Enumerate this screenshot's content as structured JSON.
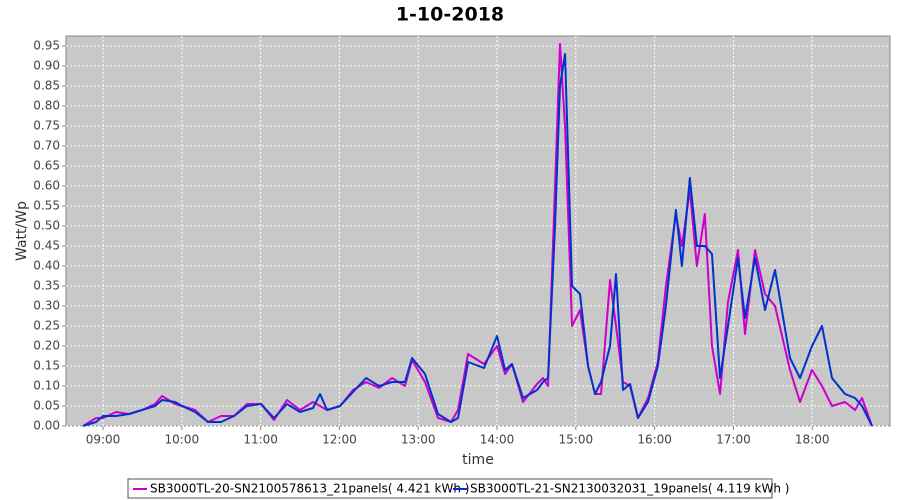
{
  "chart_data": {
    "type": "line",
    "title": "1-10-2018",
    "x_label": "time",
    "y_label": "Watt/Wp",
    "x": [
      8.746,
      8.911,
      9.0,
      9.165,
      9.33,
      9.495,
      9.66,
      9.749,
      9.914,
      10.003,
      10.168,
      10.332,
      10.497,
      10.662,
      10.827,
      11.005,
      11.17,
      11.335,
      11.5,
      11.665,
      11.754,
      11.843,
      12.008,
      12.173,
      12.338,
      12.503,
      12.668,
      12.832,
      12.921,
      13.086,
      13.251,
      13.416,
      13.505,
      13.632,
      13.835,
      14.0,
      14.102,
      14.19,
      14.33,
      14.508,
      14.584,
      14.647,
      14.736,
      14.799,
      14.863,
      14.952,
      15.053,
      15.155,
      15.244,
      15.32,
      15.434,
      15.51,
      15.599,
      15.688,
      15.789,
      15.916,
      16.041,
      16.143,
      16.27,
      16.346,
      16.447,
      16.536,
      16.637,
      16.728,
      16.83,
      16.931,
      17.058,
      17.147,
      17.274,
      17.401,
      17.528,
      17.718,
      17.845,
      17.997,
      18.124,
      18.251,
      18.416,
      18.543,
      18.632,
      18.759
    ],
    "series": [
      {
        "name": "SB3000TL-20-SN2100578613_21panels( 4.421 kWh )",
        "color": "#cc00cc",
        "values": [
          0.0,
          0.02,
          0.02,
          0.035,
          0.03,
          0.04,
          0.055,
          0.075,
          0.055,
          0.05,
          0.04,
          0.01,
          0.025,
          0.025,
          0.055,
          0.055,
          0.015,
          0.065,
          0.04,
          0.06,
          0.05,
          0.04,
          0.05,
          0.09,
          0.11,
          0.095,
          0.12,
          0.1,
          0.165,
          0.11,
          0.02,
          0.01,
          0.04,
          0.18,
          0.155,
          0.2,
          0.13,
          0.155,
          0.06,
          0.105,
          0.12,
          0.1,
          0.6,
          0.955,
          0.75,
          0.25,
          0.29,
          0.15,
          0.08,
          0.08,
          0.365,
          0.25,
          0.11,
          0.1,
          0.02,
          0.07,
          0.16,
          0.35,
          0.53,
          0.45,
          0.59,
          0.4,
          0.53,
          0.2,
          0.08,
          0.31,
          0.44,
          0.23,
          0.44,
          0.33,
          0.3,
          0.14,
          0.06,
          0.14,
          0.1,
          0.05,
          0.06,
          0.04,
          0.07,
          0.0
        ]
      },
      {
        "name": "SB3000TL-21-SN2130032031_19panels( 4.119 kWh )",
        "color": "#0033cc",
        "values": [
          0.0,
          0.01,
          0.025,
          0.025,
          0.03,
          0.04,
          0.05,
          0.065,
          0.06,
          0.05,
          0.035,
          0.01,
          0.01,
          0.025,
          0.05,
          0.055,
          0.02,
          0.055,
          0.035,
          0.045,
          0.08,
          0.04,
          0.05,
          0.085,
          0.12,
          0.1,
          0.11,
          0.11,
          0.17,
          0.13,
          0.03,
          0.01,
          0.02,
          0.16,
          0.145,
          0.225,
          0.14,
          0.155,
          0.07,
          0.09,
          0.11,
          0.12,
          0.5,
          0.85,
          0.93,
          0.35,
          0.33,
          0.15,
          0.08,
          0.11,
          0.2,
          0.38,
          0.09,
          0.105,
          0.02,
          0.06,
          0.15,
          0.3,
          0.54,
          0.4,
          0.62,
          0.45,
          0.45,
          0.43,
          0.12,
          0.25,
          0.42,
          0.27,
          0.42,
          0.29,
          0.39,
          0.17,
          0.12,
          0.2,
          0.25,
          0.12,
          0.08,
          0.07,
          0.05,
          0.0
        ]
      }
    ],
    "xlim": [
      8.53,
      18.987
    ],
    "xticks": [
      {
        "value": 9,
        "label": "09:00"
      },
      {
        "value": 10,
        "label": "10:00"
      },
      {
        "value": 11,
        "label": "11:00"
      },
      {
        "value": 12,
        "label": "12:00"
      },
      {
        "value": 13,
        "label": "13:00"
      },
      {
        "value": 14,
        "label": "14:00"
      },
      {
        "value": 15,
        "label": "15:00"
      },
      {
        "value": 16,
        "label": "16:00"
      },
      {
        "value": 17,
        "label": "17:00"
      },
      {
        "value": 18,
        "label": "18:00"
      }
    ],
    "ylim": [
      0,
      0.975
    ],
    "yticks": [
      {
        "value": 0,
        "label": "0.00"
      },
      {
        "value": 0.05,
        "label": "0.05"
      },
      {
        "value": 0.1,
        "label": "0.10"
      },
      {
        "value": 0.15,
        "label": "0.15"
      },
      {
        "value": 0.2,
        "label": "0.20"
      },
      {
        "value": 0.25,
        "label": "0.25"
      },
      {
        "value": 0.3,
        "label": "0.30"
      },
      {
        "value": 0.35,
        "label": "0.35"
      },
      {
        "value": 0.4,
        "label": "0.40"
      },
      {
        "value": 0.45,
        "label": "0.45"
      },
      {
        "value": 0.5,
        "label": "0.50"
      },
      {
        "value": 0.55,
        "label": "0.55"
      },
      {
        "value": 0.6,
        "label": "0.60"
      },
      {
        "value": 0.65,
        "label": "0.65"
      },
      {
        "value": 0.7,
        "label": "0.70"
      },
      {
        "value": 0.75,
        "label": "0.75"
      },
      {
        "value": 0.8,
        "label": "0.80"
      },
      {
        "value": 0.85,
        "label": "0.85"
      },
      {
        "value": 0.9,
        "label": "0.90"
      },
      {
        "value": 0.95,
        "label": "0.95"
      }
    ],
    "grid": true,
    "legend": "bottom"
  }
}
